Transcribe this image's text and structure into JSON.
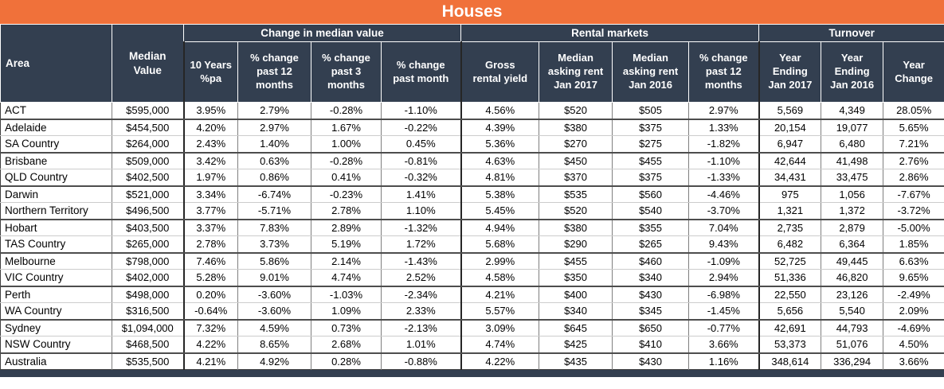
{
  "title": "Houses",
  "colors": {
    "accent_orange": "#F0713A",
    "header_navy": "#333F50",
    "body_text": "#000000",
    "grid_minor": "#7f7f7f",
    "grid_major": "#262626"
  },
  "chart_data": {
    "type": "table",
    "title": "Houses",
    "corner": {
      "area": "Area",
      "median_value": "Median\nValue"
    },
    "groups": [
      {
        "label": "Change in median value",
        "span": 4
      },
      {
        "label": "Rental markets",
        "span": 4
      },
      {
        "label": "Turnover",
        "span": 3
      }
    ],
    "columns": [
      "10 Years\n%pa",
      "% change\npast 12\nmonths",
      "% change\npast 3\nmonths",
      "% change\npast month",
      "Gross\nrental yield",
      "Median\nasking rent\nJan 2017",
      "Median\nasking rent\nJan 2016",
      "% change\npast 12\nmonths",
      "Year\nEnding\nJan 2017",
      "Year\nEnding\nJan 2016",
      "Year\nChange"
    ],
    "rows": [
      [
        "ACT",
        "$595,000",
        "3.95%",
        "2.79%",
        "-0.28%",
        "-1.10%",
        "4.56%",
        "$520",
        "$505",
        "2.97%",
        "5,569",
        "4,349",
        "28.05%"
      ],
      [
        "Adelaide",
        "$454,500",
        "4.20%",
        "2.97%",
        "1.67%",
        "-0.22%",
        "4.39%",
        "$380",
        "$375",
        "1.33%",
        "20,154",
        "19,077",
        "5.65%"
      ],
      [
        "SA Country",
        "$264,000",
        "2.43%",
        "1.40%",
        "1.00%",
        "0.45%",
        "5.36%",
        "$270",
        "$275",
        "-1.82%",
        "6,947",
        "6,480",
        "7.21%"
      ],
      [
        "Brisbane",
        "$509,000",
        "3.42%",
        "0.63%",
        "-0.28%",
        "-0.81%",
        "4.63%",
        "$450",
        "$455",
        "-1.10%",
        "42,644",
        "41,498",
        "2.76%"
      ],
      [
        "QLD Country",
        "$402,500",
        "1.97%",
        "0.86%",
        "0.41%",
        "-0.32%",
        "4.81%",
        "$370",
        "$375",
        "-1.33%",
        "34,431",
        "33,475",
        "2.86%"
      ],
      [
        "Darwin",
        "$521,000",
        "3.34%",
        "-6.74%",
        "-0.23%",
        "1.41%",
        "5.38%",
        "$535",
        "$560",
        "-4.46%",
        "975",
        "1,056",
        "-7.67%"
      ],
      [
        "Northern Territory",
        "$496,500",
        "3.77%",
        "-5.71%",
        "2.78%",
        "1.10%",
        "5.45%",
        "$520",
        "$540",
        "-3.70%",
        "1,321",
        "1,372",
        "-3.72%"
      ],
      [
        "Hobart",
        "$403,500",
        "3.37%",
        "7.83%",
        "2.89%",
        "-1.32%",
        "4.94%",
        "$380",
        "$355",
        "7.04%",
        "2,735",
        "2,879",
        "-5.00%"
      ],
      [
        "TAS Country",
        "$265,000",
        "2.78%",
        "3.73%",
        "5.19%",
        "1.72%",
        "5.68%",
        "$290",
        "$265",
        "9.43%",
        "6,482",
        "6,364",
        "1.85%"
      ],
      [
        "Melbourne",
        "$798,000",
        "7.46%",
        "5.86%",
        "2.14%",
        "-1.43%",
        "2.99%",
        "$455",
        "$460",
        "-1.09%",
        "52,725",
        "49,445",
        "6.63%"
      ],
      [
        "VIC Country",
        "$402,000",
        "5.28%",
        "9.01%",
        "4.74%",
        "2.52%",
        "4.58%",
        "$350",
        "$340",
        "2.94%",
        "51,336",
        "46,820",
        "9.65%"
      ],
      [
        "Perth",
        "$498,000",
        "0.20%",
        "-3.60%",
        "-1.03%",
        "-2.34%",
        "4.21%",
        "$400",
        "$430",
        "-6.98%",
        "22,550",
        "23,126",
        "-2.49%"
      ],
      [
        "WA Country",
        "$316,500",
        "-0.64%",
        "-3.60%",
        "1.09%",
        "2.33%",
        "5.57%",
        "$340",
        "$345",
        "-1.45%",
        "5,656",
        "5,540",
        "2.09%"
      ],
      [
        "Sydney",
        "$1,094,000",
        "7.32%",
        "4.59%",
        "0.73%",
        "-2.13%",
        "3.09%",
        "$645",
        "$650",
        "-0.77%",
        "42,691",
        "44,793",
        "-4.69%"
      ],
      [
        "NSW Country",
        "$468,500",
        "4.22%",
        "8.65%",
        "2.68%",
        "1.01%",
        "4.74%",
        "$425",
        "$410",
        "3.66%",
        "53,373",
        "51,076",
        "4.50%"
      ],
      [
        "Australia",
        "$535,500",
        "4.21%",
        "4.92%",
        "0.28%",
        "-0.88%",
        "4.22%",
        "$435",
        "$430",
        "1.16%",
        "348,614",
        "336,294",
        "3.66%"
      ]
    ]
  }
}
